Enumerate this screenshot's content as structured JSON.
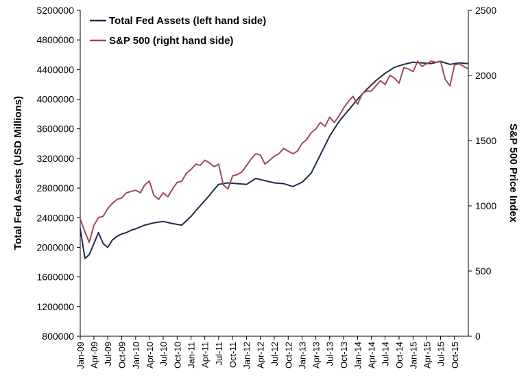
{
  "chart_data": {
    "type": "line",
    "title": "",
    "left_axis": {
      "label": "Total Fed Assets (USD Millions)",
      "ylim": [
        800000,
        5200000
      ],
      "ticks": [
        "800000",
        "1200000",
        "1600000",
        "2000000",
        "2400000",
        "2800000",
        "3200000",
        "3600000",
        "4000000",
        "4400000",
        "4800000",
        "5200000"
      ]
    },
    "right_axis": {
      "label": "S&P 500 Price Index",
      "ylim": [
        0,
        2500
      ],
      "ticks": [
        "0",
        "500",
        "1000",
        "1500",
        "2000",
        "2500"
      ]
    },
    "x_axis": {
      "start": "2009-01",
      "end": "2015-12",
      "ticks": [
        "Jan-09",
        "Apr-09",
        "Jul-09",
        "Oct-09",
        "Jan-10",
        "Apr-10",
        "Jul-10",
        "Oct-10",
        "Jan-11",
        "Apr-11",
        "Jul-11",
        "Oct-11",
        "Jan-12",
        "Apr-12",
        "Jul-12",
        "Oct-12",
        "Jan-13",
        "Apr-13",
        "Jul-13",
        "Oct-13",
        "Jan-14",
        "Apr-14",
        "Jul-14",
        "Oct-14",
        "Jan-15",
        "Apr-15",
        "Jul-15",
        "Oct-15"
      ]
    },
    "legend_position": "top-left",
    "series": [
      {
        "name": "Total Fed Assets (left hand side)",
        "axis": "left",
        "color": "#1a2c4e",
        "x": [
          "2009-01-01",
          "2009-02-01",
          "2009-03-01",
          "2009-04-01",
          "2009-05-01",
          "2009-06-01",
          "2009-07-01",
          "2009-08-01",
          "2009-09-01",
          "2009-10-01",
          "2009-11-01",
          "2009-12-01",
          "2010-01-01",
          "2010-03-01",
          "2010-05-01",
          "2010-07-01",
          "2010-09-01",
          "2010-11-01",
          "2011-01-01",
          "2011-03-01",
          "2011-05-01",
          "2011-06-01",
          "2011-07-01",
          "2011-09-01",
          "2011-11-01",
          "2012-01-01",
          "2012-03-01",
          "2012-05-01",
          "2012-07-01",
          "2012-09-01",
          "2012-11-01",
          "2013-01-01",
          "2013-03-01",
          "2013-05-01",
          "2013-07-01",
          "2013-09-01",
          "2013-11-01",
          "2014-01-01",
          "2014-03-01",
          "2014-05-01",
          "2014-07-01",
          "2014-09-01",
          "2014-11-01",
          "2015-01-01",
          "2015-03-01",
          "2015-05-01",
          "2015-07-01",
          "2015-09-01",
          "2015-11-01",
          "2015-12-31"
        ],
        "values": [
          2250000,
          1850000,
          1900000,
          2050000,
          2200000,
          2050000,
          2000000,
          2100000,
          2150000,
          2180000,
          2200000,
          2230000,
          2250000,
          2300000,
          2330000,
          2350000,
          2320000,
          2300000,
          2420000,
          2560000,
          2700000,
          2780000,
          2850000,
          2870000,
          2860000,
          2850000,
          2930000,
          2900000,
          2870000,
          2860000,
          2820000,
          2880000,
          3000000,
          3250000,
          3500000,
          3700000,
          3850000,
          4000000,
          4130000,
          4250000,
          4350000,
          4430000,
          4470000,
          4500000,
          4490000,
          4480000,
          4510000,
          4470000,
          4490000,
          4480000
        ]
      },
      {
        "name": "S&P 500 (right hand side)",
        "axis": "right",
        "color": "#9c4a5c",
        "x": [
          "2009-01-01",
          "2009-02-01",
          "2009-03-01",
          "2009-04-01",
          "2009-05-01",
          "2009-06-01",
          "2009-07-01",
          "2009-08-01",
          "2009-09-01",
          "2009-10-01",
          "2009-11-01",
          "2009-12-01",
          "2010-01-01",
          "2010-02-01",
          "2010-03-01",
          "2010-04-01",
          "2010-05-01",
          "2010-06-01",
          "2010-07-01",
          "2010-08-01",
          "2010-09-01",
          "2010-10-01",
          "2010-11-01",
          "2010-12-01",
          "2011-01-01",
          "2011-02-01",
          "2011-03-01",
          "2011-04-01",
          "2011-05-01",
          "2011-06-01",
          "2011-07-01",
          "2011-08-01",
          "2011-09-01",
          "2011-10-01",
          "2011-11-01",
          "2011-12-01",
          "2012-01-01",
          "2012-02-01",
          "2012-03-01",
          "2012-04-01",
          "2012-05-01",
          "2012-06-01",
          "2012-07-01",
          "2012-08-01",
          "2012-09-01",
          "2012-10-01",
          "2012-11-01",
          "2012-12-01",
          "2013-01-01",
          "2013-02-01",
          "2013-03-01",
          "2013-04-01",
          "2013-05-01",
          "2013-06-01",
          "2013-07-01",
          "2013-08-01",
          "2013-09-01",
          "2013-10-01",
          "2013-11-01",
          "2013-12-01",
          "2014-01-01",
          "2014-02-01",
          "2014-03-01",
          "2014-04-01",
          "2014-05-01",
          "2014-06-01",
          "2014-07-01",
          "2014-08-01",
          "2014-09-01",
          "2014-10-01",
          "2014-11-01",
          "2014-12-01",
          "2015-01-01",
          "2015-02-01",
          "2015-03-01",
          "2015-04-01",
          "2015-05-01",
          "2015-06-01",
          "2015-07-01",
          "2015-08-01",
          "2015-09-01",
          "2015-10-01",
          "2015-11-01",
          "2015-12-31"
        ],
        "values": [
          900,
          800,
          720,
          850,
          910,
          920,
          980,
          1020,
          1050,
          1060,
          1100,
          1110,
          1120,
          1100,
          1160,
          1190,
          1080,
          1050,
          1100,
          1070,
          1130,
          1180,
          1190,
          1250,
          1280,
          1320,
          1310,
          1350,
          1330,
          1300,
          1320,
          1160,
          1130,
          1230,
          1240,
          1260,
          1310,
          1360,
          1400,
          1390,
          1320,
          1350,
          1380,
          1400,
          1440,
          1420,
          1400,
          1420,
          1480,
          1510,
          1560,
          1590,
          1640,
          1610,
          1680,
          1640,
          1690,
          1750,
          1800,
          1840,
          1780,
          1860,
          1880,
          1880,
          1920,
          1960,
          1930,
          2000,
          1980,
          1940,
          2060,
          2050,
          2030,
          2110,
          2070,
          2090,
          2110,
          2100,
          2110,
          1970,
          1920,
          2080,
          2090,
          2050
        ]
      }
    ]
  }
}
